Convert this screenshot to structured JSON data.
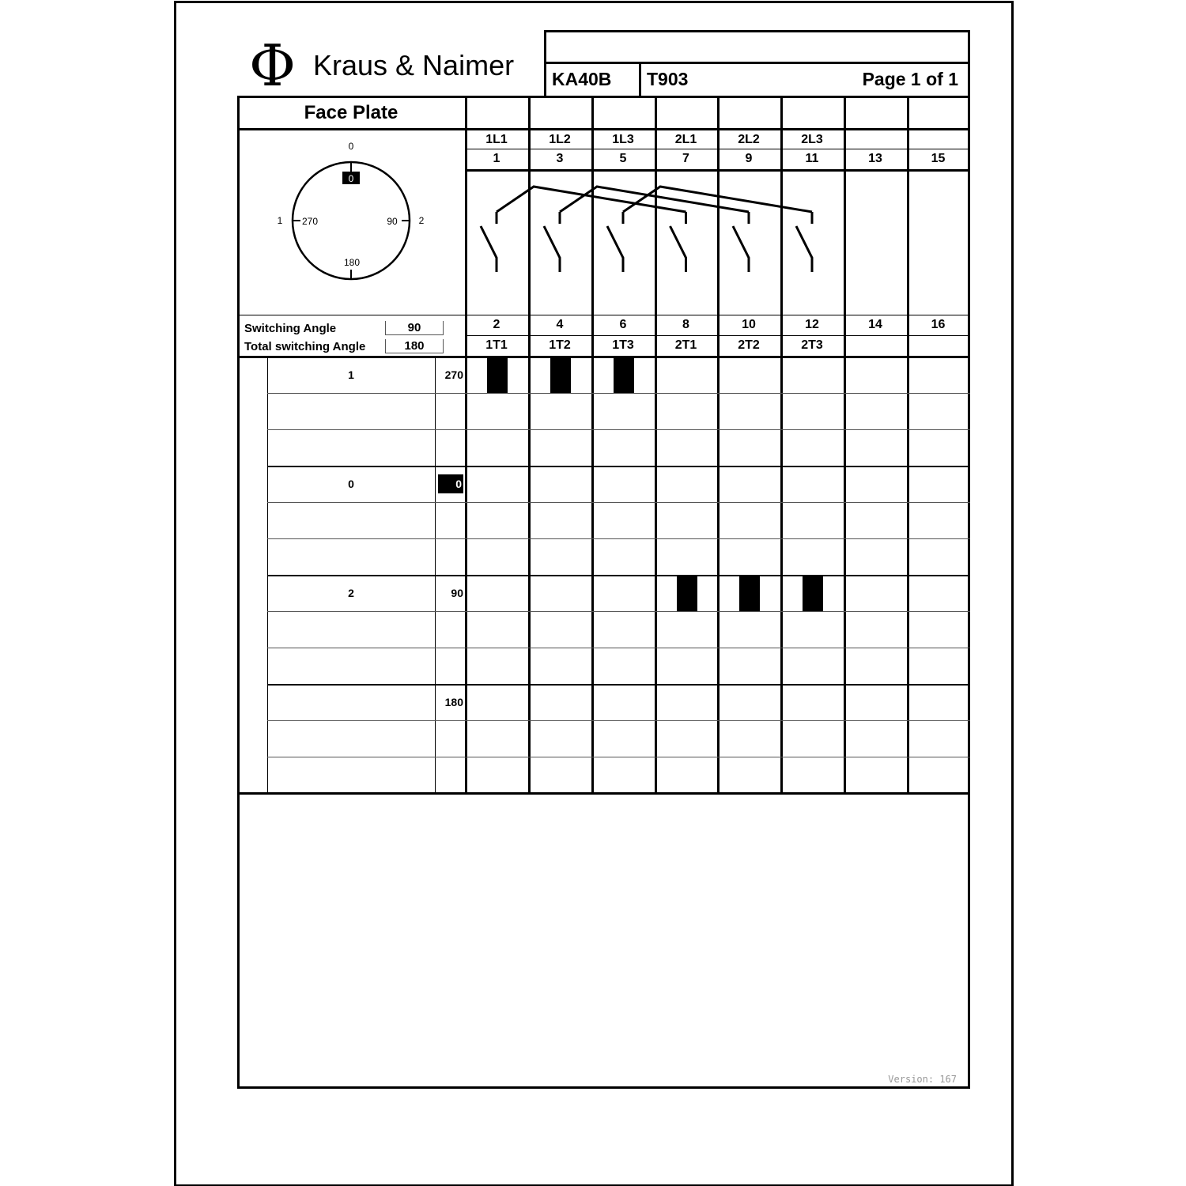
{
  "logo": {
    "symbol": "Φ",
    "brand": "Kraus & Naimer"
  },
  "title_block": {
    "title": "",
    "model": "KA40B",
    "program": "T903",
    "page": "Page 1 of 1"
  },
  "face_plate": {
    "heading": "Face Plate",
    "dial": {
      "top_label": "0",
      "top_angle": "0",
      "left_label": "1",
      "left_angle": "270",
      "right_label": "2",
      "right_angle": "90",
      "bottom_angle": "180"
    },
    "switching_angle_label": "Switching Angle",
    "switching_angle": "90",
    "total_angle_label": "Total switching Angle",
    "total_angle": "180"
  },
  "columns": [
    {
      "line_label": "1L1",
      "top_terminal": "1",
      "bottom_terminal": "2",
      "load_label": "1T1"
    },
    {
      "line_label": "1L2",
      "top_terminal": "3",
      "bottom_terminal": "4",
      "load_label": "1T2"
    },
    {
      "line_label": "1L3",
      "top_terminal": "5",
      "bottom_terminal": "6",
      "load_label": "1T3"
    },
    {
      "line_label": "2L1",
      "top_terminal": "7",
      "bottom_terminal": "8",
      "load_label": "2T1"
    },
    {
      "line_label": "2L2",
      "top_terminal": "9",
      "bottom_terminal": "10",
      "load_label": "2T2"
    },
    {
      "line_label": "2L3",
      "top_terminal": "11",
      "bottom_terminal": "12",
      "load_label": "2T3"
    },
    {
      "line_label": "",
      "top_terminal": "13",
      "bottom_terminal": "14",
      "load_label": ""
    },
    {
      "line_label": "",
      "top_terminal": "15",
      "bottom_terminal": "16",
      "load_label": ""
    }
  ],
  "positions": [
    {
      "position": "1",
      "angle": "270",
      "closed_contacts": [
        0,
        1,
        2
      ]
    },
    {
      "position": "",
      "angle": "",
      "closed_contacts": []
    },
    {
      "position": "",
      "angle": "",
      "closed_contacts": []
    },
    {
      "position": "0",
      "angle": "0",
      "angle_highlighted": true,
      "closed_contacts": []
    },
    {
      "position": "",
      "angle": "",
      "closed_contacts": []
    },
    {
      "position": "",
      "angle": "",
      "closed_contacts": []
    },
    {
      "position": "2",
      "angle": "90",
      "closed_contacts": [
        3,
        4,
        5
      ]
    },
    {
      "position": "",
      "angle": "",
      "closed_contacts": []
    },
    {
      "position": "",
      "angle": "",
      "closed_contacts": []
    },
    {
      "position": "",
      "angle": "180",
      "closed_contacts": []
    },
    {
      "position": "",
      "angle": "",
      "closed_contacts": []
    },
    {
      "position": "",
      "angle": "",
      "closed_contacts": []
    }
  ],
  "version": "Version: 167"
}
